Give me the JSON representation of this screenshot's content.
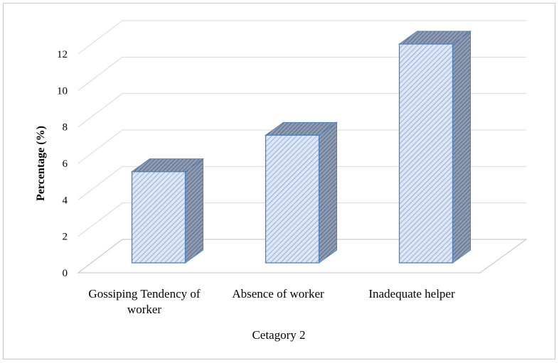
{
  "chart_data": {
    "type": "bar3d",
    "x_label": "Cetagory 2",
    "y_label": "Percentage (%)",
    "categories": [
      "Gossiping Tendency of worker",
      "Absence of worker",
      "Inadequate helper"
    ],
    "values": [
      5,
      7,
      12
    ],
    "color": "#4f81bd",
    "ylim": [
      0,
      12
    ],
    "yticks": [
      0,
      2,
      4,
      6,
      8,
      10,
      12
    ],
    "grid": true
  }
}
